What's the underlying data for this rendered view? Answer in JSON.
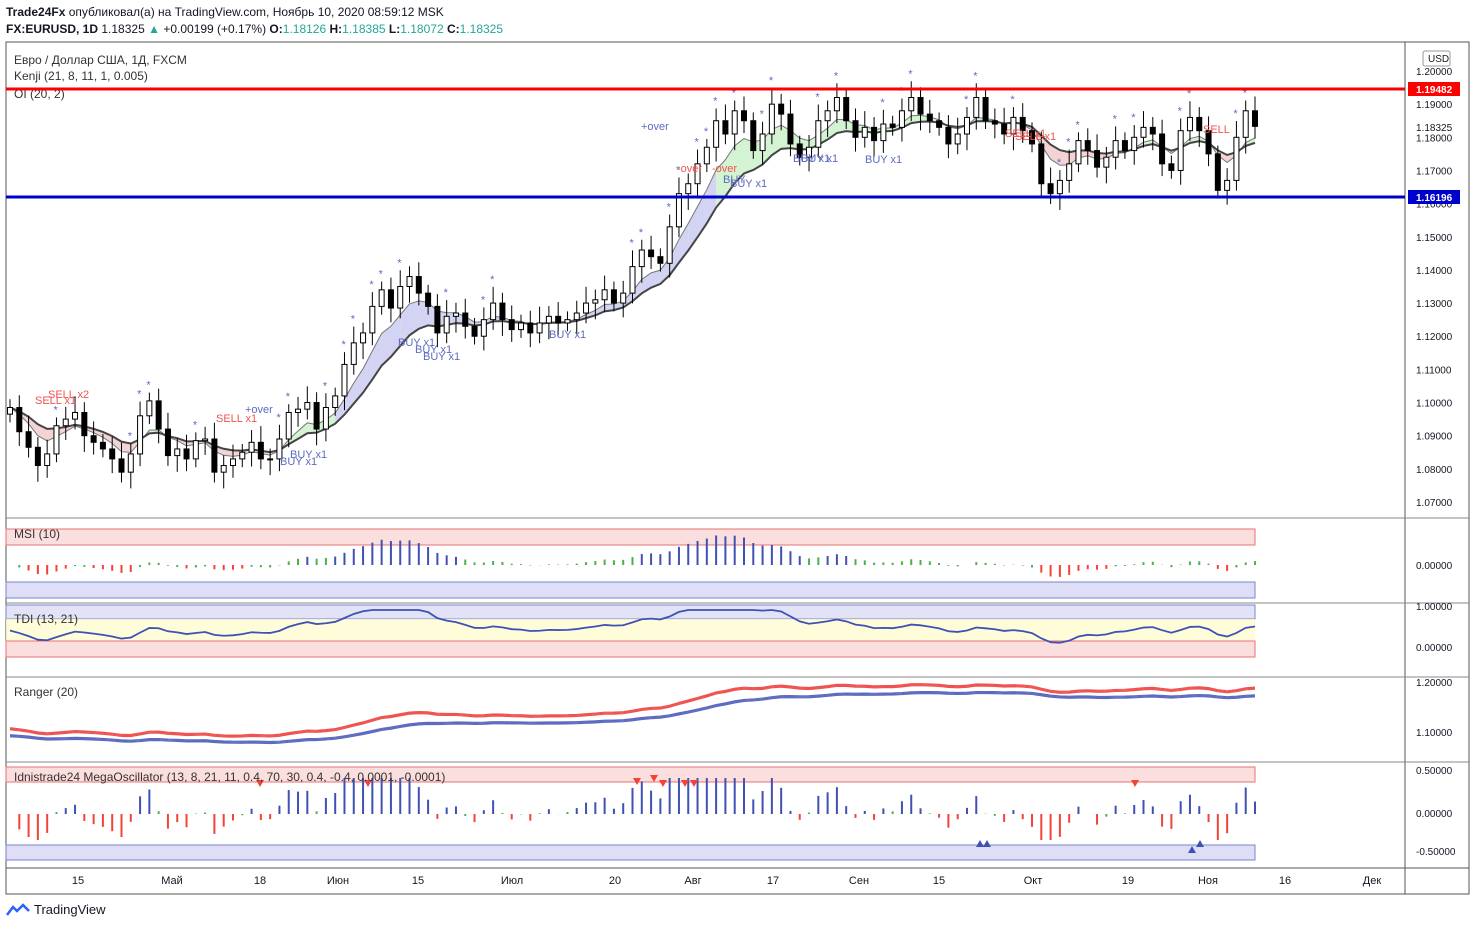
{
  "header": {
    "publisher": "Trade24Fx",
    "published_text": "опубликовал(а) на TradingView.com, Ноябрь 10, 2020 08:59:12 MSK",
    "symbol": "FX:EURUSD, 1D",
    "last": "1.18325",
    "change_arrow": "▲",
    "change": "+0.00199 (+0.17%)",
    "o_label": "O:",
    "o_value": "1.18126",
    "h_label": "H:",
    "h_value": "1.18385",
    "l_label": "L:",
    "l_value": "1.18072",
    "c_label": "C:",
    "c_value": "1.18325"
  },
  "main_pane": {
    "title": "Евро / Доллар США, 1Д, FXCM",
    "indicator1": "Kenji (21, 8, 11, 1, 0.005)",
    "indicator2": "OI (20, 2)",
    "currency": "USD",
    "resistance_label": "1.19482",
    "support_label": "1.16196",
    "last_label": "1.18325"
  },
  "panes": {
    "msi": "MSI (10)",
    "tdi": "TDI (13, 21)",
    "ranger": "Ranger (20)",
    "mega": "Idnistrade24 MegaOscillator (13, 8, 21, 11, 0.4, 70, 30, 0.4, -0.4, 0.0001, -0.0001)"
  },
  "colors": {
    "resistance": "#ff0000",
    "support": "#0000cc",
    "up_candle": "#ffffff",
    "down_candle": "#000000",
    "bull_cloud": "#c8f0c8",
    "bear_cloud": "#f0c8c8",
    "blue_cloud": "#c8c8f0",
    "bar_blue": "#3f51b5",
    "bar_red": "#f44336",
    "bar_green": "#4caf50"
  },
  "signals": [
    {
      "text": "SELL x2",
      "kind": "sell",
      "pos": 0
    },
    {
      "text": "SELL x1",
      "kind": "sell",
      "pos": 1
    },
    {
      "text": "SELL x1",
      "kind": "sell",
      "pos": 2
    },
    {
      "text": "+over",
      "kind": "buy",
      "pos": 3
    },
    {
      "text": "BUY x1",
      "kind": "buy",
      "pos": 4
    },
    {
      "text": "BUY x1",
      "kind": "buy",
      "pos": 5
    },
    {
      "text": "BUY x1",
      "kind": "buy",
      "pos": 6
    },
    {
      "text": "BUY x1",
      "kind": "buy",
      "pos": 7
    },
    {
      "text": "BUY x1",
      "kind": "buy",
      "pos": 8
    },
    {
      "text": "BUY x1",
      "kind": "buy",
      "pos": 9
    },
    {
      "text": "+over",
      "kind": "buy",
      "pos": 10
    },
    {
      "text": "-over",
      "kind": "sell",
      "pos": 11
    },
    {
      "text": "-over",
      "kind": "sell",
      "pos": 12
    },
    {
      "text": "BUY",
      "kind": "buy",
      "pos": 13
    },
    {
      "text": "BUY x1",
      "kind": "buy",
      "pos": 14
    },
    {
      "text": "BUY x1",
      "kind": "buy",
      "pos": 15
    },
    {
      "text": "BUY x1",
      "kind": "buy",
      "pos": 16
    },
    {
      "text": "BUY x1",
      "kind": "buy",
      "pos": 17
    },
    {
      "text": "SELL x1",
      "kind": "sell",
      "pos": 18
    },
    {
      "text": "SELL x1",
      "kind": "sell",
      "pos": 19
    },
    {
      "text": "SELL",
      "kind": "sell",
      "pos": 20
    }
  ],
  "chart_data": {
    "type": "candlestick",
    "timeframe": "1D",
    "symbol": "FX:EURUSD",
    "y_ticks": [
      "1.20000",
      "1.19000",
      "1.18000",
      "1.17000",
      "1.16000",
      "1.15000",
      "1.14000",
      "1.13000",
      "1.12000",
      "1.11000",
      "1.10000",
      "1.09000",
      "1.08000",
      "1.07000"
    ],
    "ylim": [
      1.065,
      1.204
    ],
    "x_labels": [
      "15",
      "Май",
      "18",
      "Июн",
      "15",
      "Июл",
      "20",
      "Авг",
      "17",
      "Сен",
      "15",
      "Окт",
      "19",
      "Ноя",
      "16",
      "Дек"
    ],
    "close": [
      1.0985,
      1.0912,
      1.0865,
      1.081,
      1.0845,
      1.093,
      1.095,
      1.097,
      1.09,
      1.088,
      1.086,
      1.083,
      1.079,
      1.0845,
      1.096,
      1.1005,
      1.092,
      1.084,
      1.086,
      1.083,
      1.0885,
      1.089,
      1.079,
      1.081,
      1.083,
      1.085,
      1.088,
      1.083,
      1.083,
      1.089,
      1.097,
      1.098,
      1.1,
      1.092,
      1.0985,
      1.102,
      1.1115,
      1.118,
      1.121,
      1.129,
      1.134,
      1.1285,
      1.135,
      1.138,
      1.133,
      1.129,
      1.121,
      1.126,
      1.127,
      1.123,
      1.12,
      1.125,
      1.13,
      1.125,
      1.122,
      1.124,
      1.121,
      1.124,
      1.126,
      1.124,
      1.125,
      1.127,
      1.13,
      1.131,
      1.134,
      1.13,
      1.133,
      1.141,
      1.146,
      1.144,
      1.142,
      1.153,
      1.163,
      1.166,
      1.172,
      1.177,
      1.185,
      1.181,
      1.188,
      1.185,
      1.176,
      1.181,
      1.19,
      1.187,
      1.178,
      1.174,
      1.177,
      1.185,
      1.188,
      1.192,
      1.185,
      1.18,
      1.183,
      1.179,
      1.184,
      1.183,
      1.188,
      1.192,
      1.187,
      1.185,
      1.183,
      1.178,
      1.181,
      1.186,
      1.192,
      1.185,
      1.184,
      1.181,
      1.186,
      1.182,
      1.178,
      1.166,
      1.163,
      1.167,
      1.172,
      1.179,
      1.176,
      1.171,
      1.174,
      1.179,
      1.176,
      1.18,
      1.183,
      1.181,
      1.172,
      1.17,
      1.182,
      1.186,
      1.182,
      1.175,
      1.164,
      1.167,
      1.18,
      1.188,
      1.1833
    ],
    "resistance": 1.19482,
    "support": 1.16196,
    "last": 1.18325,
    "indicators": [
      {
        "name": "MSI (10)",
        "ticks": [
          "0.00000"
        ]
      },
      {
        "name": "TDI (13, 21)",
        "ticks": [
          "1.00000",
          "0.00000"
        ]
      },
      {
        "name": "Ranger (20)",
        "ticks": [
          "1.20000",
          "1.10000"
        ]
      },
      {
        "name": "Idnistrade24 MegaOscillator",
        "ticks": [
          "0.50000",
          "0.00000",
          "-0.50000"
        ]
      }
    ],
    "grid": true,
    "legend": "top-left"
  },
  "footer": {
    "brand": "TradingView"
  }
}
